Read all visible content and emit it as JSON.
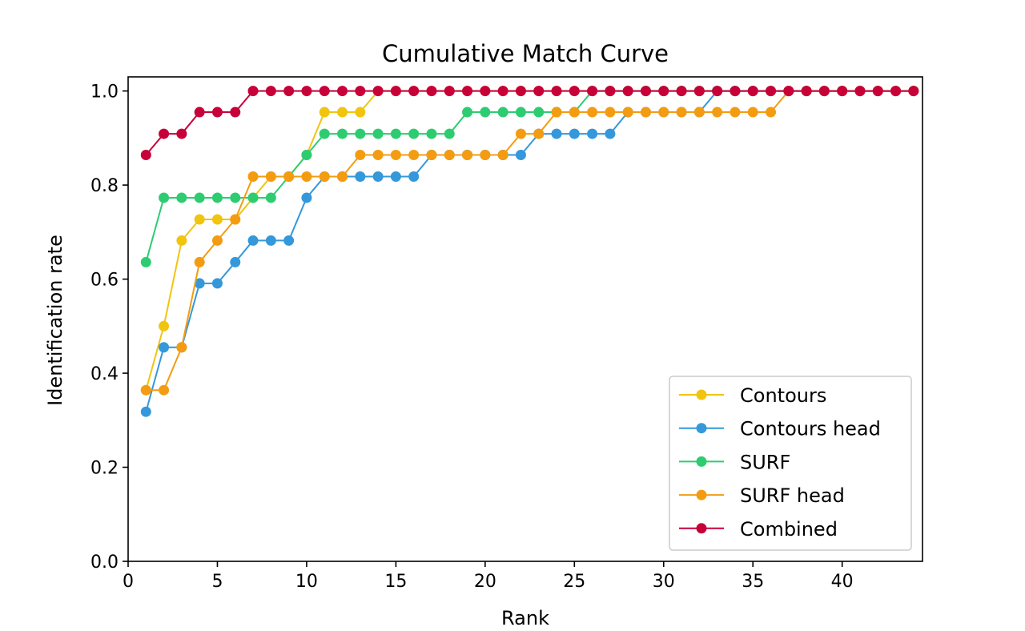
{
  "chart_data": {
    "type": "line",
    "title": "Cumulative Match Curve",
    "xlabel": "Rank",
    "ylabel": "Identification rate",
    "xlim": [
      0,
      44.5
    ],
    "ylim": [
      0,
      1.03
    ],
    "xticks": [
      0,
      5,
      10,
      15,
      20,
      25,
      30,
      35,
      40
    ],
    "yticks": [
      0.0,
      0.2,
      0.4,
      0.6,
      0.8,
      1.0
    ],
    "xtick_labels": [
      "0",
      "5",
      "10",
      "15",
      "20",
      "25",
      "30",
      "35",
      "40"
    ],
    "ytick_labels": [
      "0.0",
      "0.2",
      "0.4",
      "0.6",
      "0.8",
      "1.0"
    ],
    "grid": false,
    "legend_position": "lower-right",
    "x": [
      1,
      2,
      3,
      4,
      5,
      6,
      7,
      8,
      9,
      10,
      11,
      12,
      13,
      14,
      15,
      16,
      17,
      18,
      19,
      20,
      21,
      22,
      23,
      24,
      25,
      26,
      27,
      28,
      29,
      30,
      31,
      32,
      33,
      34,
      35,
      36,
      37,
      38,
      39,
      40,
      41,
      42,
      43,
      44
    ],
    "series": [
      {
        "name": "Contours",
        "color": "#f1c40f",
        "values": [
          0.364,
          0.5,
          0.682,
          0.727,
          0.727,
          0.727,
          0.773,
          0.818,
          0.818,
          0.864,
          0.955,
          0.955,
          0.955,
          1.0,
          1.0,
          1.0,
          1.0,
          1.0,
          1.0,
          1.0,
          1.0,
          1.0,
          1.0,
          1.0,
          1.0,
          1.0,
          1.0,
          1.0,
          1.0,
          1.0,
          1.0,
          1.0,
          1.0,
          1.0,
          1.0,
          1.0,
          1.0,
          1.0,
          1.0,
          1.0,
          1.0,
          1.0,
          1.0,
          1.0
        ]
      },
      {
        "name": "Contours head",
        "color": "#3498db",
        "values": [
          0.318,
          0.455,
          0.455,
          0.591,
          0.591,
          0.636,
          0.682,
          0.682,
          0.682,
          0.773,
          0.818,
          0.818,
          0.818,
          0.818,
          0.818,
          0.818,
          0.864,
          0.864,
          0.864,
          0.864,
          0.864,
          0.864,
          0.909,
          0.909,
          0.909,
          0.909,
          0.909,
          0.955,
          0.955,
          0.955,
          0.955,
          0.955,
          1.0,
          1.0,
          1.0,
          1.0,
          1.0,
          1.0,
          1.0,
          1.0,
          1.0,
          1.0,
          1.0,
          1.0
        ]
      },
      {
        "name": "SURF",
        "color": "#2ecc71",
        "values": [
          0.636,
          0.773,
          0.773,
          0.773,
          0.773,
          0.773,
          0.773,
          0.773,
          0.818,
          0.864,
          0.909,
          0.909,
          0.909,
          0.909,
          0.909,
          0.909,
          0.909,
          0.909,
          0.955,
          0.955,
          0.955,
          0.955,
          0.955,
          0.955,
          0.955,
          1.0,
          1.0,
          1.0,
          1.0,
          1.0,
          1.0,
          1.0,
          1.0,
          1.0,
          1.0,
          1.0,
          1.0,
          1.0,
          1.0,
          1.0,
          1.0,
          1.0,
          1.0,
          1.0
        ]
      },
      {
        "name": "SURF head",
        "color": "#f39c12",
        "values": [
          0.364,
          0.364,
          0.455,
          0.636,
          0.682,
          0.727,
          0.818,
          0.818,
          0.818,
          0.818,
          0.818,
          0.818,
          0.864,
          0.864,
          0.864,
          0.864,
          0.864,
          0.864,
          0.864,
          0.864,
          0.864,
          0.909,
          0.909,
          0.955,
          0.955,
          0.955,
          0.955,
          0.955,
          0.955,
          0.955,
          0.955,
          0.955,
          0.955,
          0.955,
          0.955,
          0.955,
          1.0,
          1.0,
          1.0,
          1.0,
          1.0,
          1.0,
          1.0,
          1.0
        ]
      },
      {
        "name": "Combined",
        "color": "#c70039",
        "values": [
          0.864,
          0.909,
          0.909,
          0.955,
          0.955,
          0.955,
          1.0,
          1.0,
          1.0,
          1.0,
          1.0,
          1.0,
          1.0,
          1.0,
          1.0,
          1.0,
          1.0,
          1.0,
          1.0,
          1.0,
          1.0,
          1.0,
          1.0,
          1.0,
          1.0,
          1.0,
          1.0,
          1.0,
          1.0,
          1.0,
          1.0,
          1.0,
          1.0,
          1.0,
          1.0,
          1.0,
          1.0,
          1.0,
          1.0,
          1.0,
          1.0,
          1.0,
          1.0,
          1.0
        ]
      }
    ]
  }
}
